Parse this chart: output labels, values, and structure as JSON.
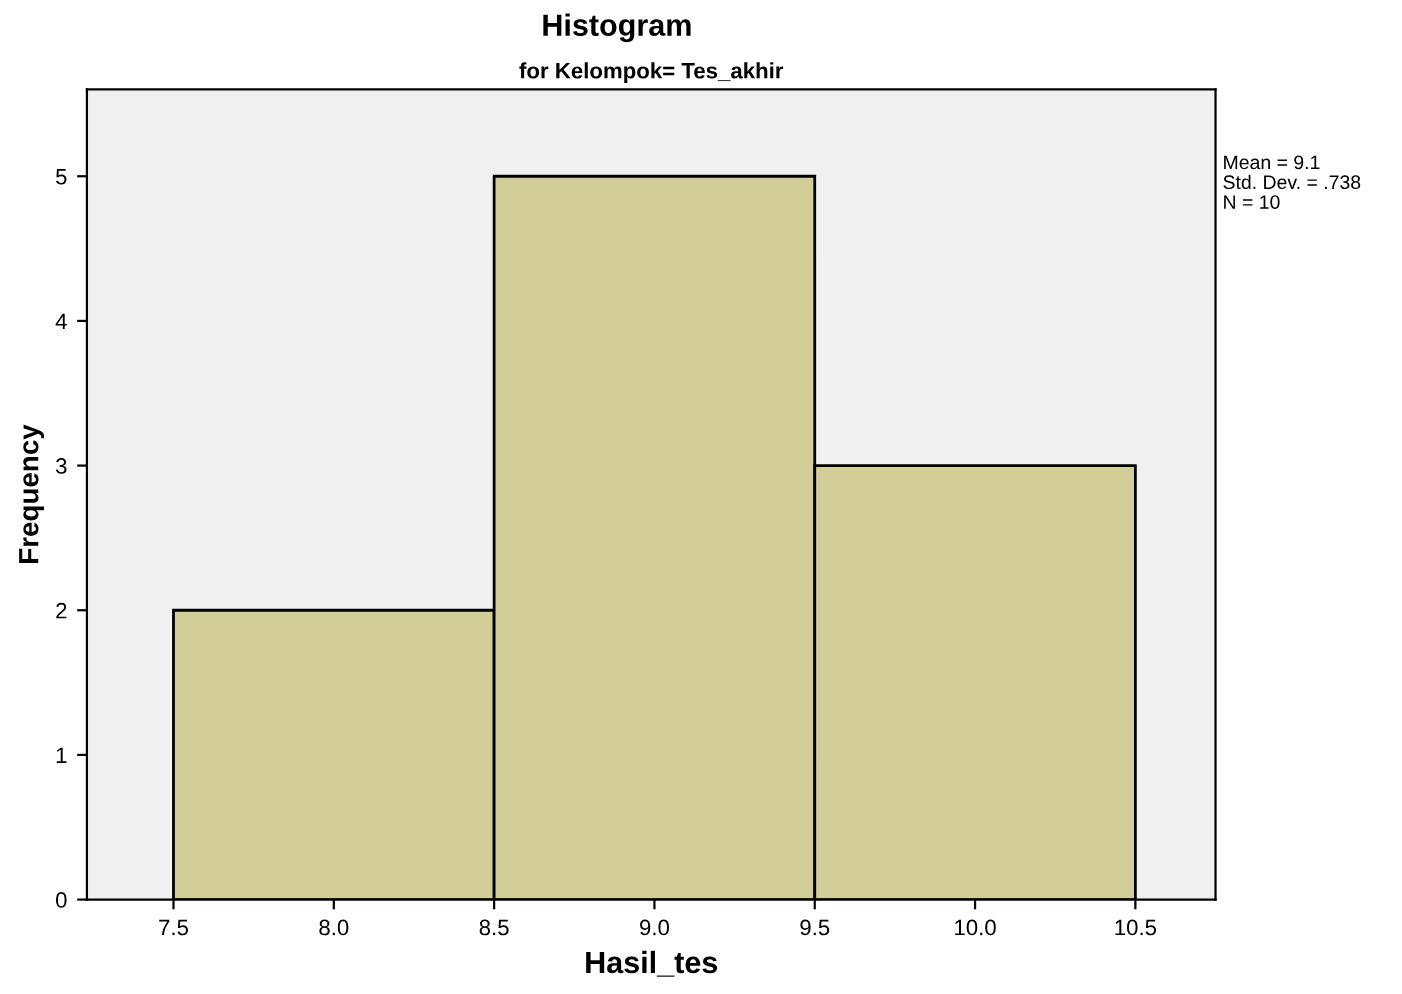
{
  "chart_data": {
    "type": "histogram",
    "title": "Histogram",
    "subtitle": "for Kelompok= Tes_akhir",
    "xlabel": "Hasil_tes",
    "ylabel": "Frequency",
    "bins": [
      7.5,
      8.5,
      9.5,
      10.5
    ],
    "values": [
      2,
      5,
      3
    ],
    "color": "#d3ce98",
    "xlim": [
      7.23,
      10.75
    ],
    "ylim": [
      0,
      5.6
    ],
    "xticks": [
      7.5,
      {
        "value": 8,
        "label": "8.0"
      },
      8.5,
      {
        "value": 9,
        "label": "9.0"
      },
      9.5,
      {
        "value": 10,
        "label": "10.0"
      },
      10.5
    ],
    "yticks": [
      0,
      1,
      2,
      3,
      4,
      5
    ],
    "grid": false,
    "annotations": [
      "Mean = 9.1",
      "Std. Dev. = .738",
      "N = 10"
    ]
  }
}
